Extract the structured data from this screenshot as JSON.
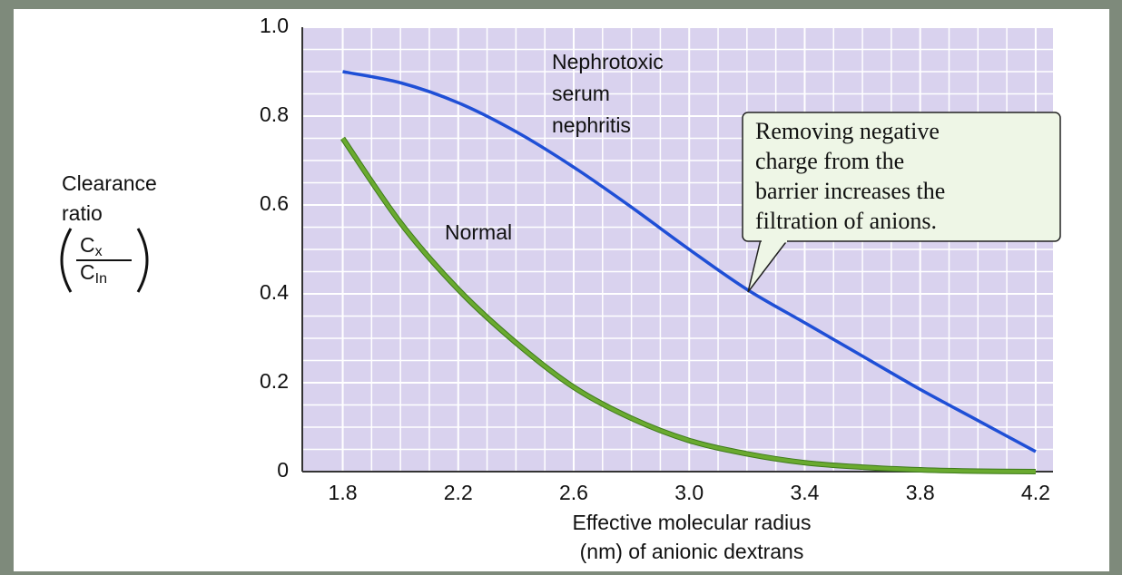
{
  "chart_data": {
    "type": "line",
    "x": [
      1.8,
      2.0,
      2.2,
      2.4,
      2.6,
      2.8,
      3.0,
      3.2,
      3.4,
      3.6,
      3.8,
      4.0,
      4.2
    ],
    "series": [
      {
        "label": [
          "Nephrotoxic",
          "serum",
          "nephritis"
        ],
        "color": "#1f4fd6",
        "values": [
          0.9,
          0.875,
          0.83,
          0.765,
          0.685,
          0.595,
          0.5,
          0.41,
          0.335,
          0.26,
          0.185,
          0.115,
          0.045
        ]
      },
      {
        "label": [
          "Normal"
        ],
        "color": "#6aaa30",
        "values": [
          0.75,
          0.56,
          0.41,
          0.29,
          0.19,
          0.12,
          0.07,
          0.04,
          0.02,
          0.01,
          0.004,
          0.001,
          0
        ]
      }
    ],
    "xlim": [
      1.66,
      4.26
    ],
    "ylim": [
      0,
      1
    ],
    "xticks": [
      1.8,
      2.2,
      2.6,
      {
        "value": 3,
        "label": "3.0"
      },
      3.4,
      3.8,
      4.2
    ],
    "yticks": [
      0,
      0.2,
      0.4,
      0.6,
      0.8,
      {
        "value": 1,
        "label": "1.0"
      }
    ],
    "grid": true,
    "x_label": [
      "Effective molecular radius",
      "(nm) of anionic dextrans"
    ],
    "y_label": {
      "lines": [
        "Clearance",
        "ratio"
      ],
      "numerator": [
        "C",
        "x"
      ],
      "denominator": [
        "C",
        "In"
      ]
    },
    "annotation": {
      "lines": [
        "Removing negative",
        "charge from the",
        "barrier increases the",
        "filtration  of anions."
      ]
    }
  }
}
